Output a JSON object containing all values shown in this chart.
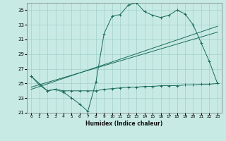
{
  "background_color": "#c8eae5",
  "grid_color": "#a0d0cc",
  "line_color": "#1a6b5a",
  "xlabel": "Humidex (Indice chaleur)",
  "ylim": [
    21,
    36
  ],
  "xlim": [
    -0.5,
    23.5
  ],
  "yticks": [
    21,
    23,
    25,
    27,
    29,
    31,
    33,
    35
  ],
  "xticks": [
    0,
    1,
    2,
    3,
    4,
    5,
    6,
    7,
    8,
    9,
    10,
    11,
    12,
    13,
    14,
    15,
    16,
    17,
    18,
    19,
    20,
    21,
    22,
    23
  ],
  "curve1_x": [
    0,
    1,
    2,
    3,
    4,
    5,
    6,
    7,
    8,
    9,
    10,
    11,
    12,
    13,
    14,
    15,
    16,
    17,
    18,
    19,
    20,
    21,
    22,
    23
  ],
  "curve1_y": [
    26.0,
    24.8,
    24.0,
    24.2,
    23.8,
    23.0,
    22.2,
    21.2,
    25.2,
    31.8,
    34.2,
    34.4,
    35.7,
    36.0,
    34.8,
    34.3,
    34.0,
    34.3,
    35.0,
    34.5,
    33.0,
    30.5,
    28.0,
    25.0
  ],
  "curve2_x": [
    0,
    2,
    3,
    4,
    5,
    6,
    7,
    8,
    9,
    10,
    11,
    12,
    13,
    14,
    15,
    16,
    17,
    18,
    19,
    20,
    21,
    22,
    23
  ],
  "curve2_y": [
    26.0,
    24.0,
    24.2,
    24.0,
    24.0,
    24.0,
    24.0,
    24.0,
    24.2,
    24.3,
    24.4,
    24.5,
    24.5,
    24.6,
    24.6,
    24.7,
    24.7,
    24.7,
    24.8,
    24.8,
    24.9,
    24.9,
    25.0
  ],
  "line3_x": [
    0,
    23
  ],
  "line3_y": [
    24.5,
    32.0
  ],
  "line4_x": [
    0,
    23
  ],
  "line4_y": [
    24.2,
    32.8
  ]
}
